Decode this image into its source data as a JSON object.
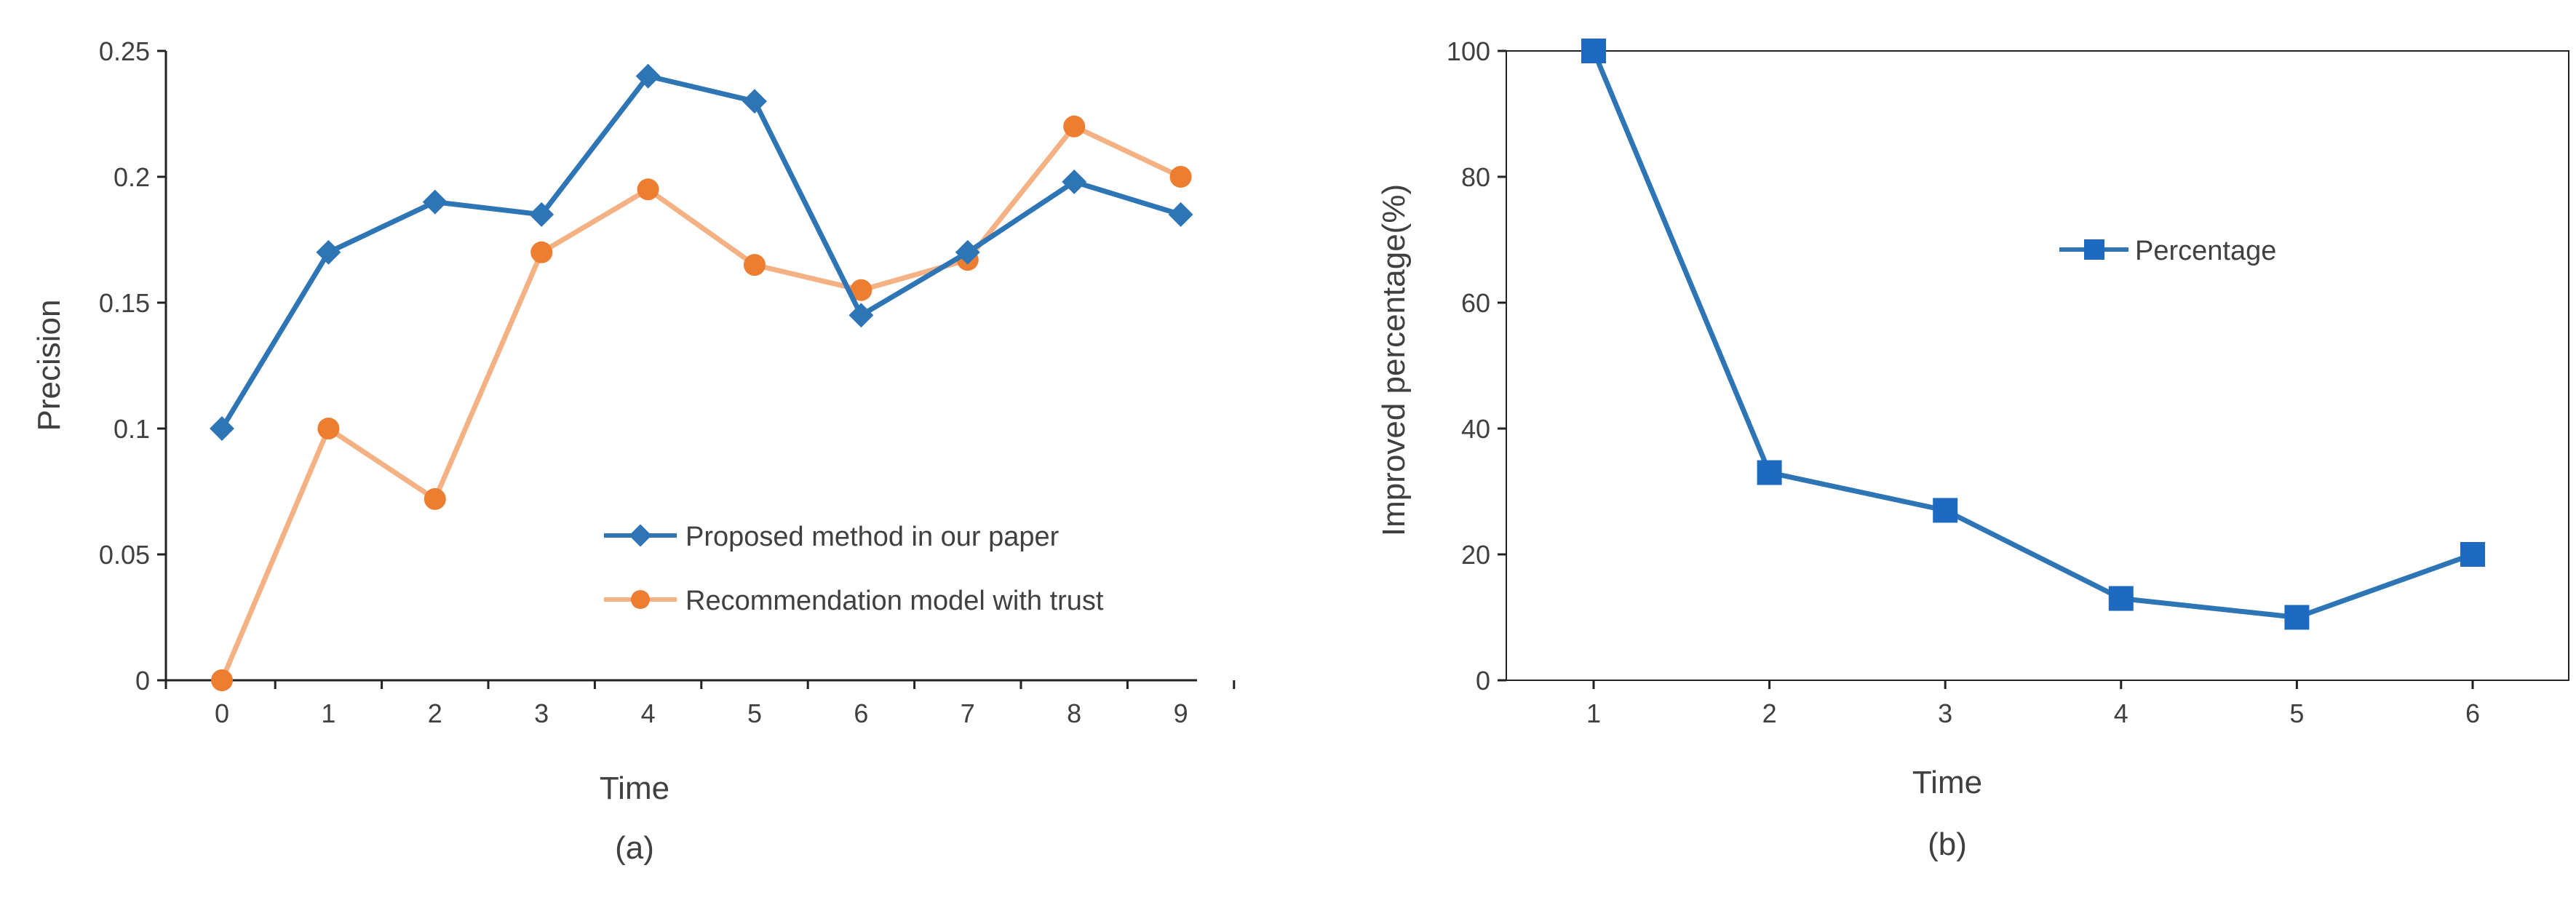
{
  "chart_data": [
    {
      "type": "line",
      "panel_label": "(a)",
      "xlabel": "Time",
      "ylabel": "Precision",
      "x": [
        0,
        1,
        2,
        3,
        4,
        5,
        6,
        7,
        8,
        9
      ],
      "xlim": [
        0,
        9
      ],
      "ylim": [
        0,
        0.25
      ],
      "yticks": [
        "0",
        "0.05",
        "0.1",
        "0.15",
        "0.2",
        "0.25"
      ],
      "grid": false,
      "legend_position": "bottom-right",
      "series": [
        {
          "name": "Proposed method in our paper",
          "values": [
            0.1,
            0.17,
            0.19,
            0.185,
            0.24,
            0.23,
            0.145,
            0.17,
            0.198,
            0.185
          ],
          "color": "#2e75b6",
          "marker": "diamond"
        },
        {
          "name": "Recommendation model with trust",
          "values": [
            0.0,
            0.1,
            0.072,
            0.17,
            0.195,
            0.165,
            0.155,
            0.167,
            0.22,
            0.2
          ],
          "color": "#f4b183",
          "marker_color": "#ed7d31",
          "marker": "circle"
        }
      ]
    },
    {
      "type": "line",
      "panel_label": "(b)",
      "xlabel": "Time",
      "ylabel": "Improved percentage(%)",
      "x": [
        1,
        2,
        3,
        4,
        5,
        6
      ],
      "ylim": [
        0,
        100
      ],
      "yticks": [
        "0",
        "20",
        "40",
        "60",
        "80",
        "100"
      ],
      "grid": false,
      "legend_position": "center-right",
      "series": [
        {
          "name": "Percentage",
          "values": [
            100,
            33,
            27,
            13,
            10,
            20
          ],
          "color": "#2e75b6",
          "marker_color": "#1f6ac1",
          "marker": "square"
        }
      ]
    }
  ]
}
